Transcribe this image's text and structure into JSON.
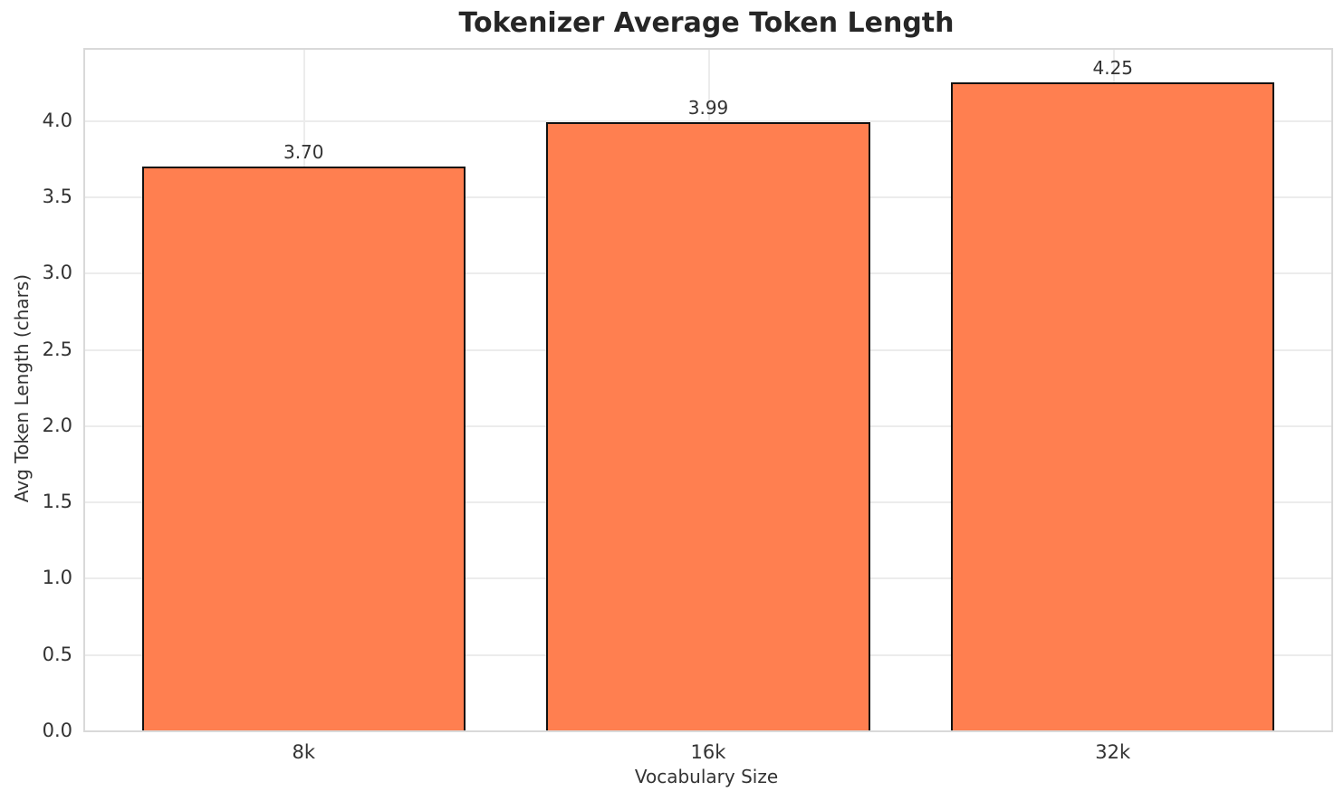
{
  "chart_data": {
    "type": "bar",
    "title": "Tokenizer Average Token Length",
    "xlabel": "Vocabulary Size",
    "ylabel": "Avg Token Length (chars)",
    "categories": [
      "8k",
      "16k",
      "32k"
    ],
    "values": [
      3.7,
      3.99,
      4.25
    ],
    "value_labels": [
      "3.70",
      "3.99",
      "4.25"
    ],
    "yticks": [
      0.0,
      0.5,
      1.0,
      1.5,
      2.0,
      2.5,
      3.0,
      3.5,
      4.0
    ],
    "ytick_labels": [
      "0.0",
      "0.5",
      "1.0",
      "1.5",
      "2.0",
      "2.5",
      "3.0",
      "3.5",
      "4.0"
    ],
    "ylim": [
      0,
      4.4625
    ],
    "grid": true,
    "legend_position": "none",
    "bar_color": "#FF7F50",
    "bar_edge_color": "#111111",
    "grid_color": "#ececec",
    "spine_color": "#d9d9d9",
    "text_color": "#333333",
    "title_color": "#262626",
    "background_color": "#ffffff"
  }
}
